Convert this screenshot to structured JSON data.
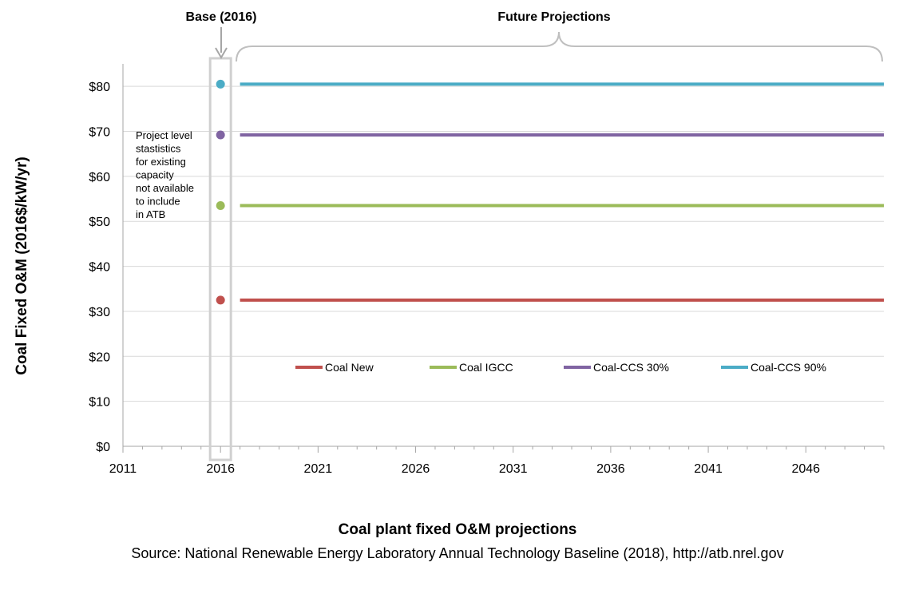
{
  "chart_data": {
    "type": "line",
    "title": "Coal plant fixed O&M projections",
    "source": "Source: National Renewable Energy Laboratory Annual Technology Baseline (2018), http://atb.nrel.gov",
    "ylabel": "Coal Fixed O&M (2016$/kW/yr)",
    "xlabel": "",
    "xlim": [
      2011,
      2050
    ],
    "ylim": [
      0,
      85
    ],
    "x_ticks": [
      2011,
      2016,
      2021,
      2026,
      2031,
      2036,
      2041,
      2046
    ],
    "y_ticks": [
      0,
      10,
      20,
      30,
      40,
      50,
      60,
      70,
      80
    ],
    "y_tick_labels": [
      "$0",
      "$10",
      "$20",
      "$30",
      "$40",
      "$50",
      "$60",
      "$70",
      "$80"
    ],
    "grid": "horizontal",
    "legend_position": "lower-center",
    "base_year": 2016,
    "projection_start": 2017,
    "series": [
      {
        "name": "Coal New",
        "color": "#c0504d",
        "base_value": 32.5,
        "x": [
          2017,
          2050
        ],
        "values": [
          32.5,
          32.5
        ]
      },
      {
        "name": "Coal IGCC",
        "color": "#9bbb59",
        "base_value": 53.5,
        "x": [
          2017,
          2050
        ],
        "values": [
          53.5,
          53.5
        ]
      },
      {
        "name": "Coal-CCS 30%",
        "color": "#8064a2",
        "base_value": 69.2,
        "x": [
          2017,
          2050
        ],
        "values": [
          69.2,
          69.2
        ]
      },
      {
        "name": "Coal-CCS 90%",
        "color": "#4bacc6",
        "base_value": 80.5,
        "x": [
          2017,
          2050
        ],
        "values": [
          80.5,
          80.5
        ]
      }
    ],
    "annotations": {
      "base_label": "Base (2016)",
      "future_label": "Future Projections",
      "note_lines": [
        "Project level",
        "stastistics",
        "for existing",
        "capacity",
        "not available",
        "to include",
        "in ATB"
      ]
    }
  }
}
